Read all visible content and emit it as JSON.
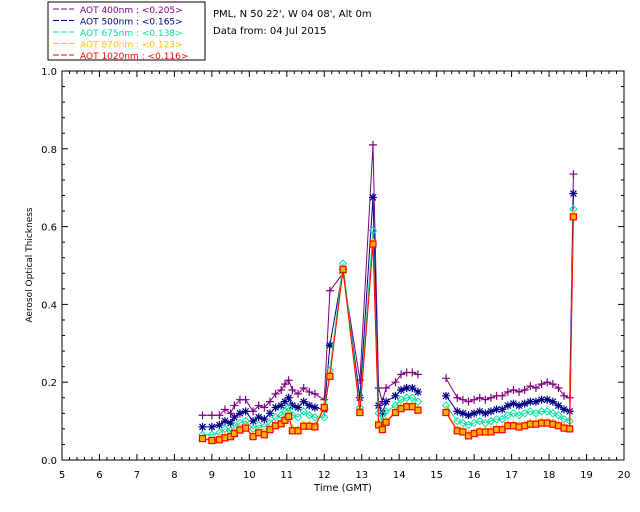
{
  "chart_data": {
    "type": "line",
    "title_lines": [
      "PML, N 50 22', W 04 08', Alt 0m",
      "Data from: 04 Jul 2015"
    ],
    "xlabel": "Time (GMT)",
    "ylabel": "Aerosol Optical Thickness",
    "xlim": [
      5,
      20
    ],
    "ylim": [
      0.0,
      1.0
    ],
    "xticks": [
      "5",
      "6",
      "7",
      "8",
      "9",
      "10",
      "11",
      "12",
      "13",
      "14",
      "15",
      "16",
      "17",
      "18",
      "19",
      "20"
    ],
    "yticks": [
      "0.0",
      "0.2",
      "0.4",
      "0.6",
      "0.8",
      "1.0"
    ],
    "legend_placement": "top-left",
    "series": [
      {
        "name": "AOT  400nm : <0.205>",
        "color": "#800080",
        "marker": "plus",
        "x": [
          8.75,
          9.0,
          9.2,
          9.35,
          9.5,
          9.6,
          9.75,
          9.9,
          10.1,
          10.25,
          10.4,
          10.55,
          10.7,
          10.85,
          10.95,
          11.05,
          11.15,
          11.3,
          11.45,
          11.6,
          11.75,
          12.0,
          12.15,
          12.5,
          12.95,
          13.3,
          13.45,
          13.55,
          13.65,
          13.9,
          14.05,
          14.2,
          14.35,
          14.5,
          15.25,
          15.55,
          15.7,
          15.85,
          16.0,
          16.15,
          16.3,
          16.45,
          16.6,
          16.75,
          16.9,
          17.05,
          17.2,
          17.35,
          17.5,
          17.65,
          17.8,
          17.95,
          18.1,
          18.25,
          18.4,
          18.55,
          18.65
        ],
        "y": [
          0.115,
          0.115,
          0.115,
          0.13,
          0.12,
          0.14,
          0.155,
          0.155,
          0.125,
          0.14,
          0.135,
          0.15,
          0.17,
          0.18,
          0.195,
          0.205,
          0.18,
          0.17,
          0.185,
          0.175,
          0.17,
          0.155,
          0.435,
          0.48,
          0.205,
          0.81,
          0.185,
          0.15,
          0.185,
          0.2,
          0.22,
          0.225,
          0.225,
          0.22,
          0.21,
          0.16,
          0.155,
          0.15,
          0.155,
          0.16,
          0.155,
          0.16,
          0.165,
          0.165,
          0.175,
          0.18,
          0.175,
          0.18,
          0.19,
          0.185,
          0.195,
          0.2,
          0.195,
          0.185,
          0.165,
          0.16,
          0.735
        ]
      },
      {
        "name": "AOT  500nm : <0.165>",
        "color": "#00008b",
        "marker": "asterisk",
        "x": [
          8.75,
          9.0,
          9.2,
          9.35,
          9.5,
          9.6,
          9.75,
          9.9,
          10.1,
          10.25,
          10.4,
          10.55,
          10.7,
          10.85,
          10.95,
          11.05,
          11.15,
          11.3,
          11.45,
          11.6,
          11.75,
          12.0,
          12.15,
          12.5,
          12.95,
          13.3,
          13.45,
          13.55,
          13.65,
          13.9,
          14.05,
          14.2,
          14.35,
          14.5,
          15.25,
          15.55,
          15.7,
          15.85,
          16.0,
          16.15,
          16.3,
          16.45,
          16.6,
          16.75,
          16.9,
          17.05,
          17.2,
          17.35,
          17.5,
          17.65,
          17.8,
          17.95,
          18.1,
          18.25,
          18.4,
          18.55,
          18.65
        ],
        "y": [
          0.085,
          0.085,
          0.09,
          0.1,
          0.095,
          0.11,
          0.12,
          0.125,
          0.1,
          0.11,
          0.105,
          0.12,
          0.135,
          0.14,
          0.15,
          0.16,
          0.14,
          0.135,
          0.15,
          0.14,
          0.135,
          0.13,
          0.295,
          0.49,
          0.16,
          0.675,
          0.14,
          0.12,
          0.15,
          0.165,
          0.18,
          0.185,
          0.185,
          0.175,
          0.165,
          0.125,
          0.12,
          0.115,
          0.12,
          0.125,
          0.12,
          0.125,
          0.13,
          0.13,
          0.14,
          0.145,
          0.14,
          0.145,
          0.15,
          0.15,
          0.155,
          0.155,
          0.15,
          0.14,
          0.13,
          0.125,
          0.685
        ]
      },
      {
        "name": "AOT  675nm : <0.138>",
        "color": "#00e0a0",
        "marker": "diamond",
        "x": [
          8.75,
          9.0,
          9.2,
          9.35,
          9.5,
          9.6,
          9.75,
          9.9,
          10.1,
          10.25,
          10.4,
          10.55,
          10.7,
          10.85,
          10.95,
          11.05,
          11.15,
          11.3,
          11.45,
          11.6,
          11.75,
          12.0,
          12.15,
          12.5,
          12.95,
          13.3,
          13.45,
          13.55,
          13.65,
          13.9,
          14.05,
          14.2,
          14.35,
          14.5,
          15.25,
          15.55,
          15.7,
          15.85,
          16.0,
          16.15,
          16.3,
          16.45,
          16.6,
          16.75,
          16.9,
          17.05,
          17.2,
          17.35,
          17.5,
          17.65,
          17.8,
          17.95,
          18.1,
          18.25,
          18.4,
          18.55,
          18.65
        ],
        "y": [
          0.065,
          0.065,
          0.07,
          0.08,
          0.075,
          0.085,
          0.095,
          0.1,
          0.08,
          0.09,
          0.085,
          0.095,
          0.11,
          0.115,
          0.125,
          0.135,
          0.115,
          0.11,
          0.125,
          0.115,
          0.11,
          0.11,
          0.23,
          0.505,
          0.135,
          0.59,
          0.12,
          0.1,
          0.125,
          0.14,
          0.155,
          0.16,
          0.16,
          0.15,
          0.14,
          0.1,
          0.095,
          0.09,
          0.095,
          0.1,
          0.095,
          0.1,
          0.105,
          0.105,
          0.115,
          0.12,
          0.115,
          0.12,
          0.125,
          0.12,
          0.125,
          0.125,
          0.12,
          0.115,
          0.105,
          0.1,
          0.645
        ]
      },
      {
        "name": "AOT  870nm : <0.123>",
        "color": "#ffc000",
        "marker": "triangle",
        "x": [
          8.75,
          9.0,
          9.2,
          9.35,
          9.5,
          9.6,
          9.75,
          9.9,
          10.1,
          10.25,
          10.4,
          10.55,
          10.7,
          10.85,
          10.95,
          11.05,
          11.15,
          11.3,
          11.45,
          11.6,
          11.75,
          12.0,
          12.15,
          12.5,
          12.95,
          13.3,
          13.45,
          13.55,
          13.65,
          13.9,
          14.05,
          14.2,
          14.35,
          14.5,
          15.25,
          15.55,
          15.7,
          15.85,
          16.0,
          16.15,
          16.3,
          16.45,
          16.6,
          16.75,
          16.9,
          17.05,
          17.2,
          17.35,
          17.5,
          17.65,
          17.8,
          17.95,
          18.1,
          18.25,
          18.4,
          18.55,
          18.65
        ],
        "y": [
          0.057,
          0.052,
          0.055,
          0.06,
          0.062,
          0.07,
          0.08,
          0.085,
          0.062,
          0.072,
          0.068,
          0.08,
          0.09,
          0.095,
          0.105,
          0.115,
          0.08,
          0.078,
          0.09,
          0.09,
          0.088,
          0.14,
          0.22,
          0.485,
          0.125,
          0.56,
          0.095,
          0.08,
          0.1,
          0.125,
          0.135,
          0.14,
          0.14,
          0.13,
          0.125,
          0.078,
          0.075,
          0.065,
          0.07,
          0.075,
          0.075,
          0.075,
          0.08,
          0.08,
          0.09,
          0.09,
          0.088,
          0.09,
          0.095,
          0.095,
          0.098,
          0.097,
          0.095,
          0.09,
          0.085,
          0.082,
          0.63
        ]
      },
      {
        "name": "AOT 1020nm : <0.116>",
        "color": "#ff0000",
        "marker": "square",
        "x": [
          8.75,
          9.0,
          9.2,
          9.35,
          9.5,
          9.6,
          9.75,
          9.9,
          10.1,
          10.25,
          10.4,
          10.55,
          10.7,
          10.85,
          10.95,
          11.05,
          11.15,
          11.3,
          11.45,
          11.6,
          11.75,
          12.0,
          12.15,
          12.5,
          12.95,
          13.3,
          13.45,
          13.55,
          13.65,
          13.9,
          14.05,
          14.2,
          14.35,
          14.5,
          15.25,
          15.55,
          15.7,
          15.85,
          16.0,
          16.15,
          16.3,
          16.45,
          16.6,
          16.75,
          16.9,
          17.05,
          17.2,
          17.35,
          17.5,
          17.65,
          17.8,
          17.95,
          18.1,
          18.25,
          18.4,
          18.55,
          18.65
        ],
        "y": [
          0.055,
          0.05,
          0.052,
          0.057,
          0.06,
          0.068,
          0.077,
          0.082,
          0.06,
          0.07,
          0.065,
          0.078,
          0.088,
          0.093,
          0.102,
          0.112,
          0.075,
          0.075,
          0.087,
          0.087,
          0.085,
          0.135,
          0.215,
          0.49,
          0.122,
          0.555,
          0.09,
          0.078,
          0.097,
          0.122,
          0.132,
          0.137,
          0.137,
          0.128,
          0.122,
          0.075,
          0.072,
          0.062,
          0.068,
          0.072,
          0.072,
          0.072,
          0.078,
          0.078,
          0.088,
          0.088,
          0.085,
          0.088,
          0.092,
          0.092,
          0.095,
          0.095,
          0.092,
          0.088,
          0.082,
          0.08,
          0.625
        ]
      }
    ]
  }
}
